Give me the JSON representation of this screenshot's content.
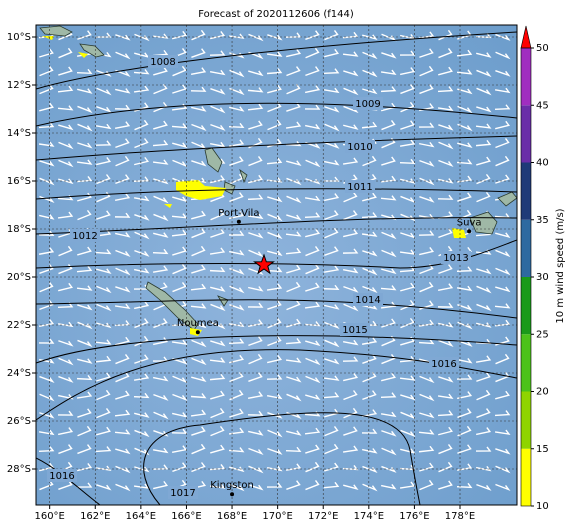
{
  "title": "Forecast of 2020112606 (f144)",
  "lon_range": [
    159.4,
    180.5
  ],
  "lat_range": [
    -29.5,
    -9.5
  ],
  "lon_ticks": [
    {
      "value": 160,
      "label": "160°E"
    },
    {
      "value": 162,
      "label": "162°E"
    },
    {
      "value": 164,
      "label": "164°E"
    },
    {
      "value": 166,
      "label": "166°E"
    },
    {
      "value": 168,
      "label": "168°E"
    },
    {
      "value": 170,
      "label": "170°E"
    },
    {
      "value": 172,
      "label": "172°E"
    },
    {
      "value": 174,
      "label": "174°E"
    },
    {
      "value": 176,
      "label": "176°E"
    },
    {
      "value": 178,
      "label": "178°E"
    }
  ],
  "lat_ticks": [
    {
      "value": -10,
      "label": "10°S"
    },
    {
      "value": -12,
      "label": "12°S"
    },
    {
      "value": -14,
      "label": "14°S"
    },
    {
      "value": -16,
      "label": "16°S"
    },
    {
      "value": -18,
      "label": "18°S"
    },
    {
      "value": -20,
      "label": "20°S"
    },
    {
      "value": -22,
      "label": "22°S"
    },
    {
      "value": -24,
      "label": "24°S"
    },
    {
      "value": -26,
      "label": "26°S"
    },
    {
      "value": -28,
      "label": "28°S"
    }
  ],
  "isobars": [
    1008,
    1009,
    1010,
    1011,
    1012,
    1013,
    1014,
    1015,
    1016,
    1017,
    1016
  ],
  "places": [
    {
      "name": "Port-Vila",
      "lon": 168.3,
      "lat": -17.7
    },
    {
      "name": "Noumea",
      "lon": 166.5,
      "lat": -22.3
    },
    {
      "name": "Suva",
      "lon": 178.4,
      "lat": -18.1
    },
    {
      "name": "Kingston",
      "lon": 168.0,
      "lat": -29.05
    }
  ],
  "storm": {
    "lon": 169.4,
    "lat": -19.5
  },
  "colorbar": {
    "label": "10 m wind speed (m/s)",
    "lim": [
      10,
      50
    ],
    "ticks": [
      10,
      15,
      20,
      25,
      30,
      35,
      40,
      45,
      50
    ],
    "colors": [
      "#ffff00",
      "#8fd400",
      "#4cc21a",
      "#1a9a1a",
      "#2e6aa0",
      "#1f3a78",
      "#6a2ea8",
      "#a02ec0"
    ],
    "extend_color": "#ff0000"
  }
}
